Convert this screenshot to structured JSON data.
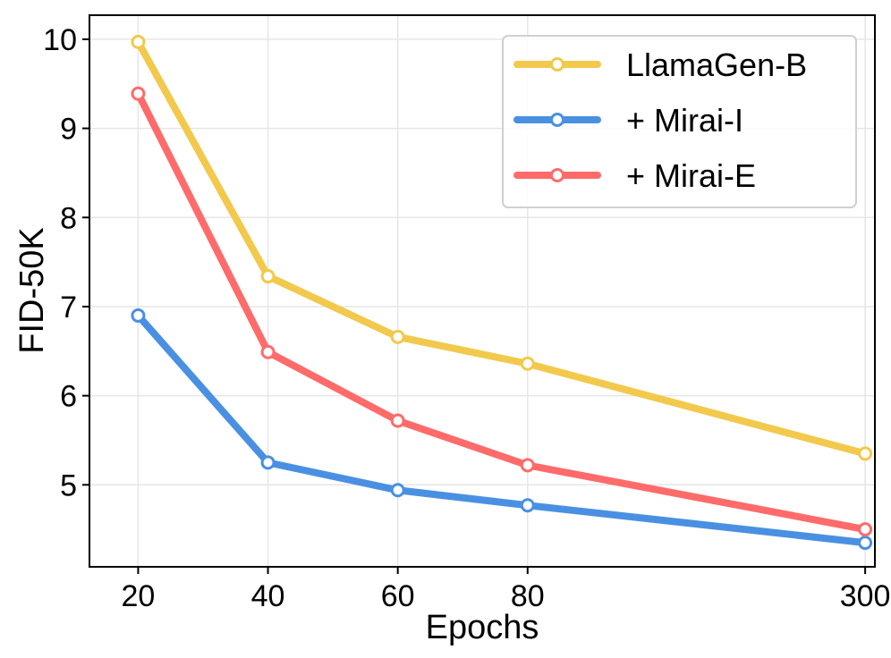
{
  "chart_data": {
    "type": "line",
    "title": "",
    "xlabel": "Epochs",
    "ylabel": "FID-50K",
    "categories": [
      "20",
      "40",
      "60",
      "80",
      "300"
    ],
    "x_positions": [
      20,
      40,
      60,
      80,
      132
    ],
    "xlim": [
      12.5,
      133.5
    ],
    "ylim": [
      4.08,
      10.27
    ],
    "yticks": [
      5,
      6,
      7,
      8,
      9,
      10
    ],
    "grid": true,
    "legend_position": "top-right",
    "series": [
      {
        "name": "LlamaGen-B",
        "color": "#F2C94C",
        "values": [
          9.97,
          7.34,
          6.66,
          6.36,
          5.35
        ]
      },
      {
        "name": "+ Mirai-I",
        "color": "#4A90E2",
        "values": [
          6.9,
          5.25,
          4.94,
          4.77,
          4.35
        ]
      },
      {
        "name": "+ Mirai-E",
        "color": "#FF6B6B",
        "values": [
          9.39,
          6.49,
          5.72,
          5.22,
          4.5
        ]
      }
    ]
  }
}
